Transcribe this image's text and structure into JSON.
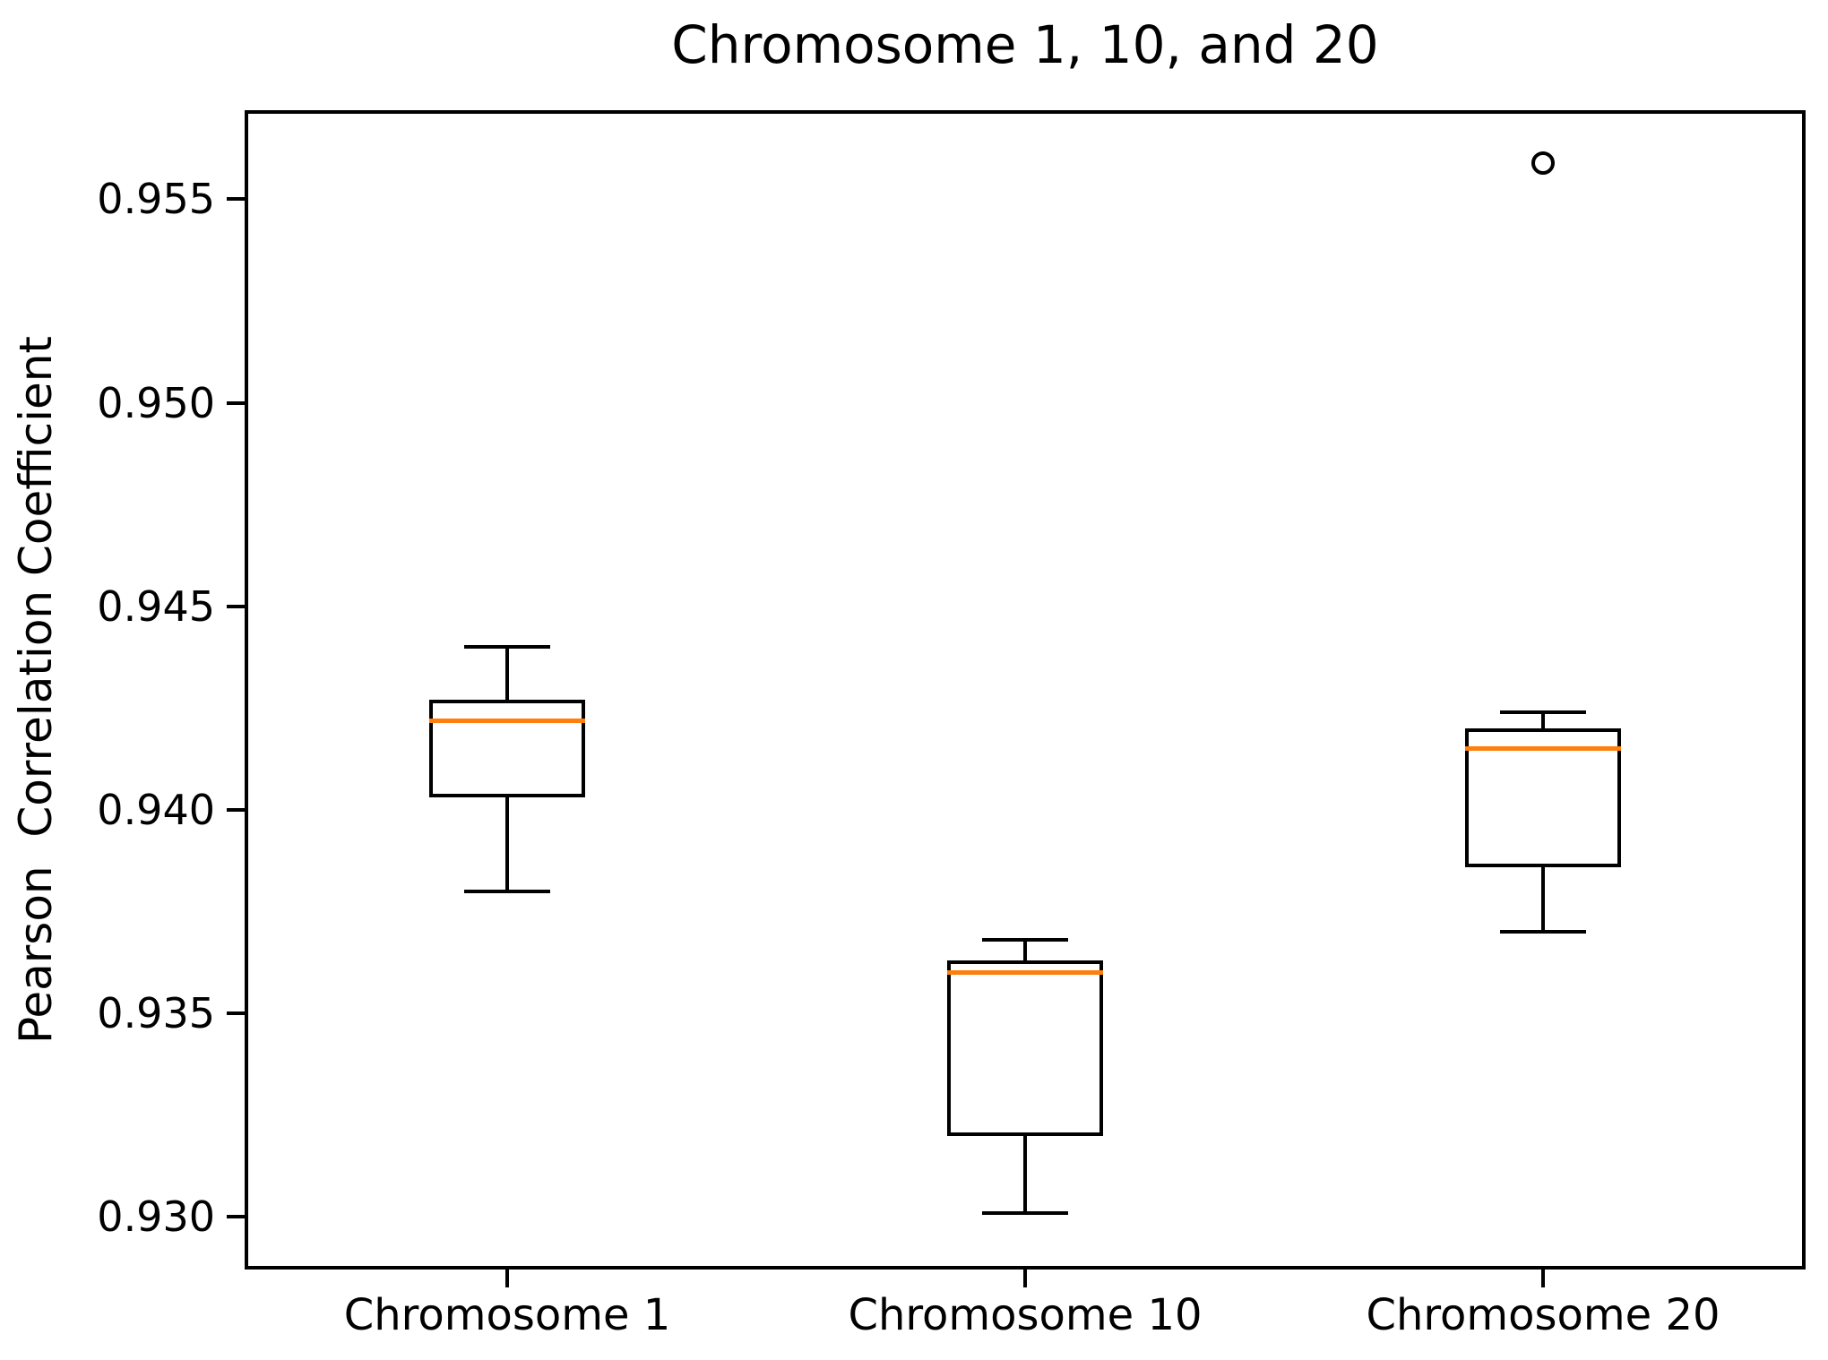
{
  "title": "Chromosome 1, 10, and 20",
  "ylabel": "Pearson  Correlation Coefficient",
  "chart_data": {
    "type": "boxplot",
    "title": "Chromosome 1, 10, and 20",
    "xlabel": "",
    "ylabel": "Pearson  Correlation Coefficient",
    "categories": [
      "Chromosome 1",
      "Chromosome 10",
      "Chromosome 20"
    ],
    "series": [
      {
        "name": "Chromosome 1",
        "whislo": 0.938,
        "q1": 0.9403,
        "med": 0.9422,
        "q3": 0.9427,
        "whishi": 0.944,
        "fliers": []
      },
      {
        "name": "Chromosome 10",
        "whislo": 0.9301,
        "q1": 0.932,
        "med": 0.936,
        "q3": 0.9363,
        "whishi": 0.9368,
        "fliers": []
      },
      {
        "name": "Chromosome 20",
        "whislo": 0.937,
        "q1": 0.9386,
        "med": 0.9415,
        "q3": 0.942,
        "whishi": 0.9424,
        "fliers": [
          0.9559
        ]
      }
    ],
    "ylim": [
      0.9288,
      0.9571
    ],
    "yticks": [
      0.93,
      0.935,
      0.94,
      0.945,
      0.95,
      0.955
    ],
    "ytick_labels": [
      "0.930",
      "0.935",
      "0.940",
      "0.945",
      "0.950",
      "0.955"
    ],
    "grid": false,
    "legend": "none",
    "colors": {
      "median": "#ff7f0e",
      "box_edge": "#000000",
      "text": "#000000",
      "background": "#ffffff"
    }
  }
}
